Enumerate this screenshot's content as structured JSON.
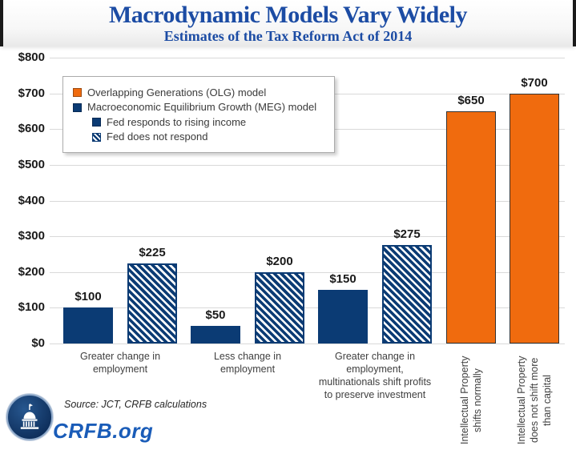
{
  "header": {
    "title": "Macrodynamic Models Vary Widely",
    "subtitle": "Estimates of the Tax Reform Act of 2014"
  },
  "chart_data": {
    "type": "bar",
    "title": "Macrodynamic Models Vary Widely",
    "subtitle": "Estimates of the Tax Reform Act of 2014",
    "ylabel": "",
    "xlabel": "",
    "ylim": [
      0,
      800
    ],
    "ytick_interval": 100,
    "ytick_labels": [
      "$0",
      "$100",
      "$200",
      "$300",
      "$400",
      "$500",
      "$600",
      "$700",
      "$800"
    ],
    "grid": true,
    "legend_position": "top-left",
    "legend": [
      {
        "label": "Overlapping Generations (OLG) model",
        "swatch": "olg-swatch",
        "indent": false
      },
      {
        "label": "Macroeconomic Equilibrium Growth (MEG) model",
        "swatch": "navy-swatch",
        "indent": false
      },
      {
        "label": "Fed responds to rising income",
        "swatch": "navy-swatch",
        "indent": true
      },
      {
        "label": "Fed does not respond",
        "swatch": "hatch-swatch",
        "indent": true
      }
    ],
    "bars": [
      {
        "category": "Greater change in employment",
        "series": "MEG - Fed responds to rising income",
        "value": 100,
        "label": "$100",
        "style": "solid"
      },
      {
        "category": "Greater change in employment",
        "series": "MEG - Fed does not respond",
        "value": 225,
        "label": "$225",
        "style": "hatched"
      },
      {
        "category": "Less change in employment",
        "series": "MEG - Fed responds to rising income",
        "value": 50,
        "label": "$50",
        "style": "solid"
      },
      {
        "category": "Less change in employment",
        "series": "MEG - Fed does not respond",
        "value": 200,
        "label": "$200",
        "style": "hatched"
      },
      {
        "category": "Greater change in employment, multinationals shift profits to preserve investment",
        "series": "MEG - Fed responds to rising income",
        "value": 150,
        "label": "$150",
        "style": "solid"
      },
      {
        "category": "Greater change in employment, multinationals shift profits to preserve investment",
        "series": "MEG - Fed does not respond",
        "value": 275,
        "label": "$275",
        "style": "hatched"
      },
      {
        "category": "Intellectual Property shifts normally",
        "series": "OLG model",
        "value": 650,
        "label": "$650",
        "style": "olg"
      },
      {
        "category": "Intellectual Property does not shift more than capital",
        "series": "OLG model",
        "value": 700,
        "label": "$700",
        "style": "olg"
      }
    ],
    "x_axis": [
      {
        "label": "Greater change in\nemployment",
        "bars": [
          0,
          1
        ],
        "rotated": false
      },
      {
        "label": "Less change in\nemployment",
        "bars": [
          2,
          3
        ],
        "rotated": false
      },
      {
        "label": "Greater change in\nemployment,\nmultinationals shift profits\nto preserve investment",
        "bars": [
          4,
          5
        ],
        "rotated": false
      },
      {
        "label": "Intellectual Property\nshifts normally",
        "bars": [
          6
        ],
        "rotated": true
      },
      {
        "label": "Intellectual Property\ndoes not shift more\nthan capital",
        "bars": [
          7
        ],
        "rotated": true
      }
    ]
  },
  "footer": {
    "source": "Source: JCT, CRFB calculations",
    "site": "CRFB.org",
    "logo": "capitol-dome-logo"
  },
  "colors": {
    "navy": "#0B3B74",
    "orange": "#F06B0E",
    "title_blue": "#1C4CA4",
    "crfb_blue": "#1A5CB8",
    "gridline": "#D9D9D9",
    "axis_label_gray": "#3F3F3F",
    "value_label_black": "#1A1A1A"
  }
}
